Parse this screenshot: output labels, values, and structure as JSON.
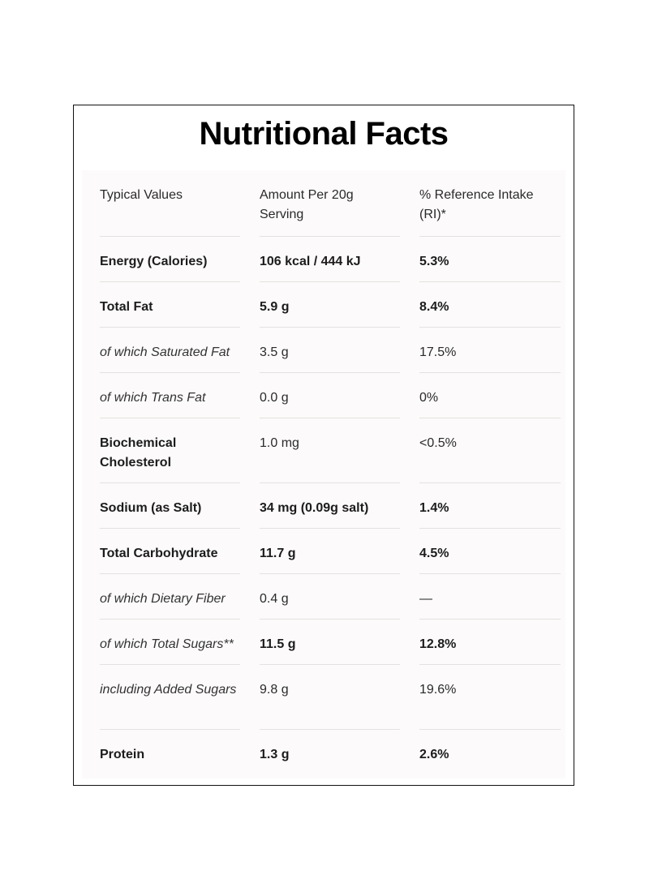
{
  "title": "Nutritional Facts",
  "headers": [
    "Typical Values",
    "Amount Per 20g Serving",
    "% Reference Intake (RI)*"
  ],
  "rows": [
    {
      "name": "Energy (Calories)",
      "amount": "106 kcal / 444 kJ",
      "ri": "5.3%",
      "style": "bold",
      "bold_values": true
    },
    {
      "name": "Total Fat",
      "amount": "5.9 g",
      "ri": "8.4%",
      "style": "bold",
      "bold_values": true
    },
    {
      "name": "of which Saturated Fat",
      "amount": "3.5 g",
      "ri": "17.5%",
      "style": "italic",
      "bold_values": false
    },
    {
      "name": "of which Trans Fat",
      "amount": "0.0 g",
      "ri": "0%",
      "style": "italic",
      "bold_values": false
    },
    {
      "name": "Biochemical Cholesterol",
      "amount": "1.0 mg",
      "ri": "<0.5%",
      "style": "bold",
      "bold_values": false
    },
    {
      "name": "Sodium (as Salt)",
      "amount": "34 mg (0.09g salt)",
      "ri": "1.4%",
      "style": "bold",
      "bold_values": true
    },
    {
      "name": "Total Carbohydrate",
      "amount": "11.7 g",
      "ri": "4.5%",
      "style": "bold",
      "bold_values": true
    },
    {
      "name": "of which Dietary Fiber",
      "amount": "0.4 g",
      "ri": "—",
      "style": "italic",
      "bold_values": false
    },
    {
      "name": "of which Total Sugars**",
      "amount": "11.5 g",
      "ri": "12.8%",
      "style": "italic",
      "bold_values": true
    },
    {
      "name": "including Added Sugars",
      "amount": "9.8 g",
      "ri": "19.6%",
      "style": "italic",
      "bold_values": false
    },
    {
      "name": "Protein",
      "amount": "1.3 g",
      "ri": "2.6%",
      "style": "bold",
      "bold_values": true
    }
  ]
}
